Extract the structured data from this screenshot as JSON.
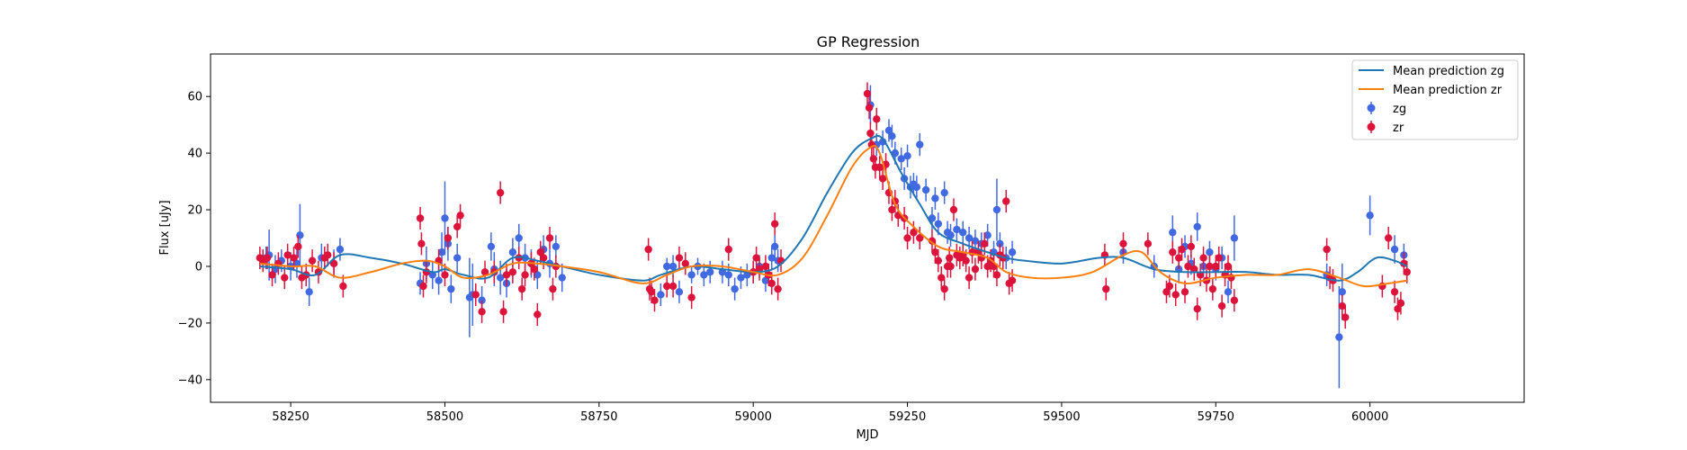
{
  "chart_data": {
    "type": "scatter",
    "title": "GP Regression",
    "xlabel": "MJD",
    "ylabel": "Flux [uJy]",
    "xlim": [
      58120,
      60250
    ],
    "ylim": [
      -48,
      75
    ],
    "xticks": [
      58250,
      58500,
      58750,
      59000,
      59250,
      59500,
      59750,
      60000
    ],
    "yticks": [
      -40,
      -20,
      0,
      20,
      40,
      60
    ],
    "xtick_labels": [
      "58250",
      "58500",
      "58750",
      "59000",
      "59250",
      "59500",
      "59750",
      "60000"
    ],
    "ytick_labels": [
      "−40",
      "−20",
      "0",
      "20",
      "40",
      "60"
    ],
    "grid": false,
    "legend_position": "top-right",
    "legend": [
      "Mean prediction zg",
      "Mean prediction zr",
      "zg",
      "zr"
    ],
    "colors": {
      "line_zg": "#1f77b4",
      "line_zr": "#ff7f0e",
      "points_zg": "#4169e1",
      "points_zr": "#dc143c"
    },
    "lines": [
      {
        "name": "Mean prediction zg",
        "x": [
          58200,
          58250,
          58290,
          58330,
          58380,
          58430,
          58480,
          58500,
          58530,
          58570,
          58610,
          58650,
          58690,
          58750,
          58820,
          58850,
          58900,
          58950,
          59000,
          59040,
          59080,
          59120,
          59160,
          59190,
          59210,
          59240,
          59270,
          59300,
          59340,
          59380,
          59410,
          59440,
          59500,
          59560,
          59600,
          59650,
          59700,
          59750,
          59800,
          59850,
          59900,
          59950,
          59980,
          60010,
          60040,
          60060
        ],
        "y": [
          0,
          -1,
          -3,
          4,
          3,
          1,
          -2,
          -1,
          -3,
          -4,
          3,
          2,
          0,
          -3,
          -5,
          -3,
          0,
          -1,
          -2,
          0,
          10,
          26,
          40,
          45,
          45,
          33,
          22,
          12,
          8,
          5,
          3,
          2,
          1,
          3,
          3,
          -1,
          -2,
          -2,
          -2,
          -3,
          -3,
          -5,
          -2,
          3,
          2,
          0
        ]
      },
      {
        "name": "Mean prediction zr",
        "x": [
          58200,
          58250,
          58290,
          58330,
          58380,
          58430,
          58470,
          58500,
          58530,
          58570,
          58610,
          58650,
          58690,
          58750,
          58820,
          58860,
          58900,
          58950,
          59000,
          59040,
          59080,
          59120,
          59160,
          59190,
          59205,
          59230,
          59260,
          59300,
          59340,
          59380,
          59410,
          59450,
          59500,
          59550,
          59600,
          59630,
          59660,
          59700,
          59750,
          59800,
          59850,
          59900,
          59950,
          59990,
          60030,
          60060
        ],
        "y": [
          1,
          0,
          0,
          -4,
          -2,
          1,
          2,
          0,
          -4,
          -3,
          1,
          1,
          0,
          -2,
          -6,
          -3,
          0,
          0,
          -2,
          -3,
          3,
          18,
          35,
          42,
          40,
          22,
          14,
          7,
          5,
          3,
          -2,
          -4,
          -4,
          -2,
          4,
          5,
          -2,
          -6,
          -4,
          -3,
          -3,
          -1,
          -4,
          -7,
          -6,
          -5
        ]
      }
    ],
    "series": [
      {
        "name": "zg",
        "x": [
          58210,
          58215,
          58225,
          58235,
          58250,
          58260,
          58265,
          58280,
          58300,
          58320,
          58330,
          58460,
          58470,
          58480,
          58490,
          58495,
          58500,
          58505,
          58510,
          58520,
          58540,
          58545,
          58560,
          58575,
          58580,
          58590,
          58600,
          58610,
          58620,
          58630,
          58640,
          58650,
          58660,
          58670,
          58680,
          58690,
          58850,
          58860,
          58870,
          58880,
          58900,
          58910,
          58920,
          58930,
          58950,
          58960,
          58970,
          58980,
          58990,
          59000,
          59010,
          59020,
          59030,
          59035,
          59040,
          59190,
          59200,
          59210,
          59220,
          59225,
          59230,
          59240,
          59245,
          59250,
          59255,
          59260,
          59265,
          59270,
          59280,
          59290,
          59295,
          59300,
          59310,
          59315,
          59320,
          59330,
          59340,
          59350,
          59360,
          59370,
          59380,
          59390,
          59395,
          59400,
          59410,
          59420,
          59600,
          59650,
          59680,
          59690,
          59700,
          59710,
          59720,
          59730,
          59740,
          59750,
          59760,
          59770,
          59780,
          59930,
          59950,
          59955,
          60000,
          60040,
          60055
        ],
        "y": [
          3,
          4,
          -1,
          2,
          0,
          1,
          11,
          -9,
          3,
          1,
          6,
          -6,
          1,
          -3,
          -5,
          5,
          17,
          8,
          -8,
          3,
          -11,
          -10,
          -12,
          7,
          -1,
          -4,
          -6,
          5,
          10,
          3,
          1,
          -3,
          6,
          1,
          7,
          -4,
          -10,
          0,
          0,
          -9,
          -3,
          0,
          -3,
          -2,
          -2,
          -3,
          -8,
          -4,
          -3,
          -2,
          0,
          -5,
          3,
          7,
          2,
          57,
          43,
          44,
          48,
          46,
          40,
          38,
          31,
          39,
          28,
          29,
          28,
          43,
          27,
          17,
          24,
          15,
          26,
          12,
          11,
          13,
          12,
          10,
          9,
          8,
          11,
          5,
          20,
          8,
          3,
          5,
          5,
          0,
          12,
          -1,
          7,
          1,
          14,
          0,
          5,
          -1,
          3,
          -9,
          10,
          -3,
          -25,
          -9,
          18,
          6,
          4
        ],
        "err": [
          4,
          9,
          5,
          4,
          5,
          5,
          11,
          5,
          5,
          5,
          4,
          4,
          6,
          5,
          5,
          7,
          13,
          6,
          5,
          5,
          14,
          11,
          5,
          5,
          6,
          6,
          5,
          5,
          5,
          5,
          5,
          5,
          5,
          5,
          4,
          5,
          4,
          3,
          4,
          4,
          3,
          3,
          4,
          4,
          4,
          4,
          4,
          4,
          4,
          4,
          4,
          4,
          4,
          4,
          4,
          7,
          4,
          4,
          4,
          4,
          4,
          4,
          4,
          4,
          4,
          4,
          4,
          4,
          4,
          4,
          4,
          4,
          4,
          4,
          4,
          4,
          4,
          4,
          4,
          4,
          4,
          4,
          11,
          4,
          4,
          4,
          4,
          4,
          6,
          5,
          4,
          4,
          5,
          4,
          4,
          4,
          4,
          4,
          8,
          4,
          18,
          10,
          7,
          5,
          4
        ]
      },
      {
        "name": "zr",
        "x": [
          58200,
          58205,
          58212,
          58220,
          58230,
          58240,
          58245,
          58255,
          58262,
          58268,
          58275,
          58285,
          58295,
          58305,
          58310,
          58320,
          58335,
          58460,
          58462,
          58465,
          58470,
          58490,
          58500,
          58505,
          58520,
          58525,
          58550,
          58560,
          58565,
          58580,
          58590,
          58595,
          58600,
          58610,
          58620,
          58625,
          58630,
          58640,
          58645,
          58650,
          58655,
          58660,
          58670,
          58675,
          58680,
          58830,
          58832,
          58835,
          58840,
          58860,
          58870,
          58880,
          58890,
          58900,
          58960,
          59000,
          59005,
          59010,
          59020,
          59025,
          59030,
          59035,
          59040,
          59045,
          59185,
          59188,
          59190,
          59192,
          59195,
          59198,
          59200,
          59205,
          59210,
          59215,
          59220,
          59225,
          59230,
          59235,
          59245,
          59250,
          59260,
          59270,
          59290,
          59295,
          59300,
          59305,
          59310,
          59315,
          59318,
          59320,
          59325,
          59330,
          59335,
          59340,
          59345,
          59350,
          59355,
          59360,
          59365,
          59370,
          59375,
          59380,
          59385,
          59390,
          59395,
          59400,
          59405,
          59410,
          59415,
          59420,
          59570,
          59572,
          59600,
          59640,
          59670,
          59675,
          59680,
          59685,
          59690,
          59695,
          59700,
          59705,
          59710,
          59715,
          59720,
          59725,
          59730,
          59735,
          59740,
          59745,
          59750,
          59755,
          59760,
          59765,
          59770,
          59775,
          59780,
          59930,
          59935,
          59940,
          59955,
          59960,
          60020,
          60030,
          60040,
          60045,
          60050,
          60055,
          60060
        ],
        "y": [
          3,
          2,
          3,
          -3,
          1,
          -4,
          4,
          3,
          7,
          -4,
          -3,
          2,
          -2,
          3,
          4,
          1,
          -7,
          17,
          8,
          -7,
          -2,
          2,
          -3,
          10,
          14,
          18,
          -10,
          -16,
          -2,
          -2,
          26,
          -16,
          -3,
          -2,
          3,
          -8,
          -3,
          1,
          -1,
          -17,
          5,
          3,
          10,
          -8,
          0,
          6,
          -8,
          -9,
          -12,
          -7,
          -7,
          3,
          1,
          -11,
          6,
          -2,
          3,
          -1,
          0,
          -3,
          -6,
          15,
          -8,
          2,
          61,
          56,
          47,
          43,
          38,
          35,
          52,
          35,
          31,
          36,
          26,
          20,
          23,
          18,
          17,
          10,
          12,
          10,
          9,
          5,
          2,
          -4,
          -8,
          0,
          3,
          0,
          20,
          4,
          3,
          4,
          2,
          -4,
          5,
          -1,
          5,
          3,
          8,
          0,
          2,
          0,
          -3,
          4,
          3,
          23,
          -6,
          -5,
          4,
          -8,
          8,
          8,
          -9,
          -7,
          5,
          -10,
          3,
          6,
          -9,
          0,
          7,
          -1,
          -15,
          -3,
          3,
          -5,
          0,
          -8,
          0,
          3,
          -14,
          -3,
          0,
          -4,
          -12,
          6,
          -4,
          -5,
          -14,
          -18,
          -7,
          10,
          -9,
          -15,
          -13,
          1,
          -2
        ]
      }
    ]
  }
}
